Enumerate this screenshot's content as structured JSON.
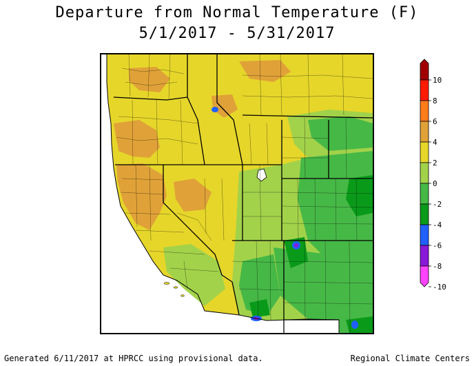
{
  "title_line1": "Departure from Normal Temperature (F)",
  "title_line2": "5/1/2017 - 5/31/2017",
  "colorbar": {
    "ticks": [
      10,
      8,
      6,
      4,
      2,
      0,
      -2,
      -4,
      -6,
      -8,
      -10
    ],
    "bins": [
      {
        "from": 8,
        "to": 10,
        "color": "#a00000"
      },
      {
        "from": 6,
        "to": 8,
        "color": "#ff1a00"
      },
      {
        "from": 4,
        "to": 6,
        "color": "#ff7c1a"
      },
      {
        "from": 2,
        "to": 4,
        "color": "#e0a238"
      },
      {
        "from": 0,
        "to": 2,
        "color": "#e6d62a"
      },
      {
        "from": -2,
        "to": 0,
        "color": "#a2d24a"
      },
      {
        "from": -4,
        "to": -2,
        "color": "#46b846"
      },
      {
        "from": -6,
        "to": -4,
        "color": "#0a9a1a"
      },
      {
        "from": -8,
        "to": -6,
        "color": "#2060ff"
      },
      {
        "from": -10,
        "to": -8,
        "color": "#8a18d8"
      },
      {
        "from": -12,
        "to": -10,
        "color": "#ff44ff"
      }
    ]
  },
  "map": {
    "fill_colors": {
      "ocean": "#ffffff",
      "yellow": "#e6d62a",
      "orange": "#e0a238",
      "lightgreen": "#a2d24a",
      "green": "#46b846",
      "darkgreen": "#0a9a1a",
      "blue": "#2060ff",
      "purple": "#8a18d8",
      "lake": "#ffffff"
    }
  },
  "footer_left": "Generated 6/11/2017 at HPRCC using provisional data.",
  "footer_right": "Regional Climate Centers"
}
